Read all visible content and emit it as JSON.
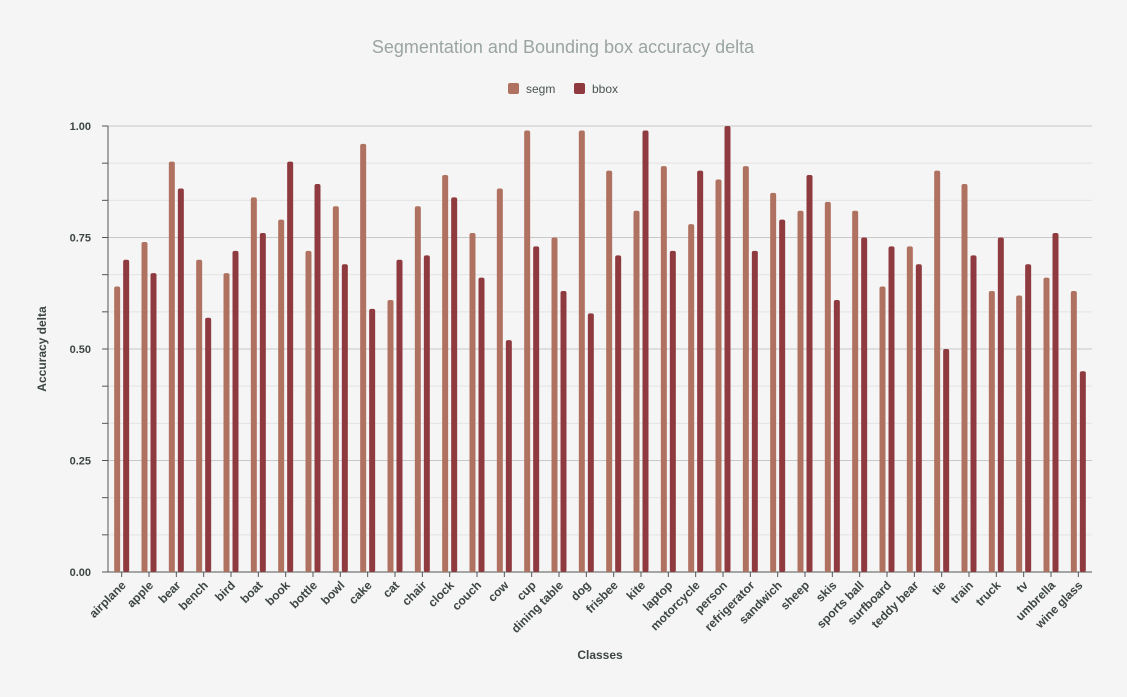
{
  "chart_data": {
    "type": "bar",
    "title": "Segmentation and Bounding box accuracy delta",
    "xlabel": "Classes",
    "ylabel": "Accuracy delta",
    "ylim": [
      0,
      1
    ],
    "yticks": [
      "0.00",
      "0.25",
      "0.50",
      "0.75",
      "1.00"
    ],
    "grid": true,
    "legend_position": "top-center",
    "categories": [
      "airplane",
      "apple",
      "bear",
      "bench",
      "bird",
      "boat",
      "book",
      "bottle",
      "bowl",
      "cake",
      "cat",
      "chair",
      "clock",
      "couch",
      "cow",
      "cup",
      "dining table",
      "dog",
      "frisbee",
      "kite",
      "laptop",
      "motorcycle",
      "person",
      "refrigerator",
      "sandwich",
      "sheep",
      "skis",
      "sports ball",
      "surfboard",
      "teddy bear",
      "tie",
      "train",
      "truck",
      "tv",
      "umbrella",
      "wine glass"
    ],
    "series": [
      {
        "name": "segm",
        "color": "#b07260",
        "values": [
          0.64,
          0.74,
          0.92,
          0.7,
          0.67,
          0.84,
          0.79,
          0.72,
          0.82,
          0.96,
          0.61,
          0.82,
          0.89,
          0.76,
          0.86,
          0.99,
          0.75,
          0.99,
          0.9,
          0.81,
          0.91,
          0.78,
          0.88,
          0.91,
          0.85,
          0.81,
          0.83,
          0.81,
          0.64,
          0.73,
          0.9,
          0.87,
          0.63,
          0.62,
          0.66,
          0.63
        ]
      },
      {
        "name": "bbox",
        "color": "#8e3a3f",
        "values": [
          0.7,
          0.67,
          0.86,
          0.57,
          0.72,
          0.76,
          0.92,
          0.87,
          0.69,
          0.59,
          0.7,
          0.71,
          0.84,
          0.66,
          0.52,
          0.73,
          0.63,
          0.58,
          0.71,
          0.99,
          0.72,
          0.9,
          1.0,
          0.72,
          0.79,
          0.89,
          0.61,
          0.75,
          0.73,
          0.69,
          0.5,
          0.71,
          0.75,
          0.69,
          0.76,
          0.45
        ]
      }
    ]
  }
}
